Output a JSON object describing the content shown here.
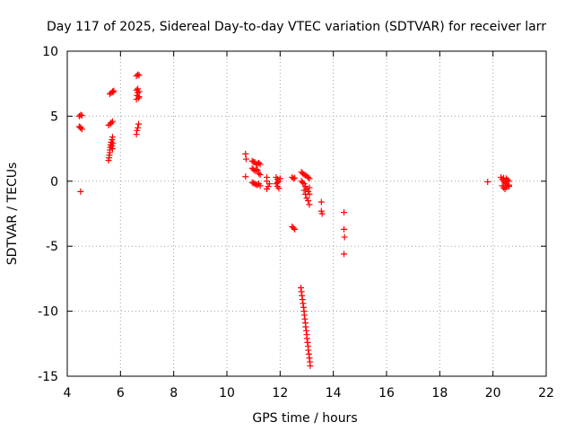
{
  "chart_data": {
    "type": "scatter",
    "title": "Day 117 of 2025, Sidereal Day-to-day VTEC variation (SDTVAR) for receiver larr",
    "xlabel": "GPS time / hours",
    "ylabel": "SDTVAR / TECUs",
    "xlim": [
      4,
      22
    ],
    "ylim": [
      -15,
      10
    ],
    "xticks": [
      4,
      6,
      8,
      10,
      12,
      14,
      16,
      18,
      20,
      22
    ],
    "yticks": [
      -15,
      -10,
      -5,
      0,
      5,
      10
    ],
    "grid": true,
    "marker": "+",
    "colors": {
      "points": "#ff0000",
      "grid": "#a0a0a0",
      "axes": "#000000"
    },
    "series": [
      {
        "name": "SDTVAR",
        "points": [
          [
            4.45,
            5.0
          ],
          [
            4.5,
            5.1
          ],
          [
            4.55,
            5.05
          ],
          [
            4.45,
            4.2
          ],
          [
            4.5,
            4.1
          ],
          [
            4.55,
            4.0
          ],
          [
            4.5,
            4.15
          ],
          [
            4.5,
            -0.8
          ],
          [
            5.55,
            4.3
          ],
          [
            5.62,
            4.4
          ],
          [
            5.7,
            4.6
          ],
          [
            5.65,
            4.5
          ],
          [
            5.6,
            6.7
          ],
          [
            5.65,
            6.8
          ],
          [
            5.7,
            6.9
          ],
          [
            5.75,
            6.95
          ],
          [
            5.72,
            6.85
          ],
          [
            5.55,
            1.6
          ],
          [
            5.57,
            1.8
          ],
          [
            5.58,
            2.0
          ],
          [
            5.6,
            2.2
          ],
          [
            5.6,
            2.4
          ],
          [
            5.62,
            2.6
          ],
          [
            5.63,
            2.8
          ],
          [
            5.65,
            3.0
          ],
          [
            5.68,
            3.2
          ],
          [
            5.7,
            3.4
          ],
          [
            5.72,
            2.9
          ],
          [
            5.7,
            2.5
          ],
          [
            5.68,
            2.7
          ],
          [
            6.6,
            8.1
          ],
          [
            6.65,
            8.2
          ],
          [
            6.7,
            8.15
          ],
          [
            6.6,
            7.0
          ],
          [
            6.65,
            6.8
          ],
          [
            6.7,
            6.9
          ],
          [
            6.62,
            6.6
          ],
          [
            6.68,
            6.4
          ],
          [
            6.6,
            6.3
          ],
          [
            6.65,
            7.1
          ],
          [
            6.7,
            6.5
          ],
          [
            6.6,
            3.6
          ],
          [
            6.62,
            3.9
          ],
          [
            6.65,
            4.1
          ],
          [
            6.68,
            4.4
          ],
          [
            10.7,
            2.1
          ],
          [
            10.72,
            1.7
          ],
          [
            10.7,
            0.35
          ],
          [
            10.95,
            1.55
          ],
          [
            11.0,
            1.5
          ],
          [
            11.05,
            1.45
          ],
          [
            11.1,
            1.3
          ],
          [
            11.15,
            1.35
          ],
          [
            11.2,
            1.4
          ],
          [
            11.25,
            1.3
          ],
          [
            10.95,
            1.0
          ],
          [
            11.0,
            0.9
          ],
          [
            11.05,
            0.8
          ],
          [
            11.1,
            0.9
          ],
          [
            11.15,
            0.85
          ],
          [
            11.2,
            0.6
          ],
          [
            11.25,
            0.5
          ],
          [
            10.95,
            -0.1
          ],
          [
            11.0,
            -0.15
          ],
          [
            11.05,
            -0.2
          ],
          [
            11.1,
            -0.25
          ],
          [
            11.15,
            -0.3
          ],
          [
            11.2,
            -0.2
          ],
          [
            11.25,
            -0.35
          ],
          [
            11.5,
            0.3
          ],
          [
            11.5,
            0.0
          ],
          [
            11.55,
            -0.4
          ],
          [
            11.5,
            -0.6
          ],
          [
            11.6,
            -0.2
          ],
          [
            11.85,
            0.3
          ],
          [
            11.9,
            0.15
          ],
          [
            11.95,
            0.0
          ],
          [
            11.85,
            -0.2
          ],
          [
            11.9,
            -0.4
          ],
          [
            11.95,
            -0.55
          ],
          [
            12.0,
            0.2
          ],
          [
            11.9,
            -0.1
          ],
          [
            12.45,
            0.3
          ],
          [
            12.5,
            0.2
          ],
          [
            12.55,
            0.25
          ],
          [
            12.45,
            -3.5
          ],
          [
            12.5,
            -3.6
          ],
          [
            12.55,
            -3.7
          ],
          [
            12.8,
            0.7
          ],
          [
            12.85,
            0.6
          ],
          [
            12.9,
            0.5
          ],
          [
            12.95,
            0.45
          ],
          [
            13.0,
            0.4
          ],
          [
            13.05,
            0.3
          ],
          [
            13.1,
            0.2
          ],
          [
            12.8,
            0.0
          ],
          [
            12.85,
            -0.1
          ],
          [
            12.9,
            -0.2
          ],
          [
            12.95,
            -0.4
          ],
          [
            13.0,
            -0.6
          ],
          [
            13.05,
            -0.8
          ],
          [
            13.1,
            -1.0
          ],
          [
            13.0,
            -1.3
          ],
          [
            13.05,
            -1.5
          ],
          [
            13.1,
            -1.8
          ],
          [
            12.95,
            -1.0
          ],
          [
            13.1,
            -0.5
          ],
          [
            12.9,
            -0.7
          ],
          [
            12.78,
            -8.2
          ],
          [
            12.8,
            -8.5
          ],
          [
            12.82,
            -8.8
          ],
          [
            12.84,
            -9.1
          ],
          [
            12.86,
            -9.4
          ],
          [
            12.88,
            -9.7
          ],
          [
            12.9,
            -10.0
          ],
          [
            12.91,
            -10.3
          ],
          [
            12.93,
            -10.6
          ],
          [
            12.95,
            -10.9
          ],
          [
            12.96,
            -11.2
          ],
          [
            12.98,
            -11.5
          ],
          [
            13.0,
            -11.8
          ],
          [
            13.01,
            -12.1
          ],
          [
            13.03,
            -12.4
          ],
          [
            13.05,
            -12.7
          ],
          [
            13.06,
            -13.0
          ],
          [
            13.08,
            -13.3
          ],
          [
            13.1,
            -13.6
          ],
          [
            13.12,
            -13.9
          ],
          [
            13.13,
            -14.2
          ],
          [
            13.55,
            -1.6
          ],
          [
            13.55,
            -2.3
          ],
          [
            13.58,
            -2.5
          ],
          [
            14.4,
            -2.4
          ],
          [
            14.4,
            -3.7
          ],
          [
            14.42,
            -4.3
          ],
          [
            14.4,
            -5.6
          ],
          [
            19.8,
            -0.05
          ],
          [
            20.3,
            0.3
          ],
          [
            20.35,
            0.15
          ],
          [
            20.4,
            0.0
          ],
          [
            20.45,
            -0.1
          ],
          [
            20.5,
            -0.2
          ],
          [
            20.55,
            -0.3
          ],
          [
            20.6,
            -0.4
          ],
          [
            20.35,
            -0.35
          ],
          [
            20.4,
            -0.5
          ],
          [
            20.5,
            0.2
          ],
          [
            20.55,
            0.1
          ],
          [
            20.6,
            0.0
          ],
          [
            20.45,
            -0.6
          ],
          [
            20.6,
            -0.3
          ],
          [
            20.4,
            0.25
          ],
          [
            20.5,
            -0.45
          ]
        ]
      }
    ]
  }
}
